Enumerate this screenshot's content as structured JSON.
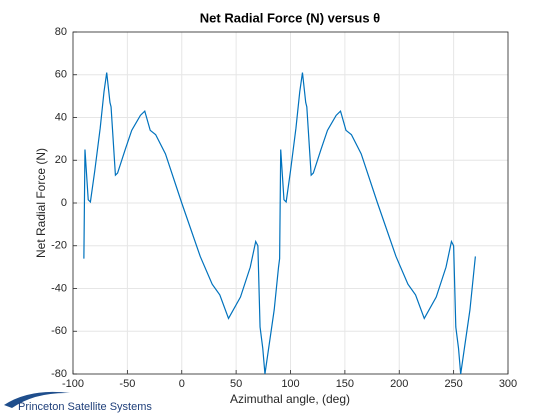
{
  "chart_data": {
    "type": "line",
    "title": "Net Radial Force (N) versus  θ",
    "xlabel": "Azimuthal angle,  (deg)",
    "ylabel": "Net Radial Force (N)",
    "logo": "Princeton Satellite Systems",
    "x": [
      -90,
      -89,
      -86,
      -84,
      -80,
      -75,
      -71.5,
      -69,
      -66,
      -65,
      -61,
      -59,
      -52,
      -46,
      -38,
      -34,
      -29,
      -24,
      -15,
      0,
      17,
      28,
      35,
      43,
      54,
      63,
      68,
      70,
      72,
      74.5,
      76.5,
      85,
      89,
      90,
      91,
      94,
      96,
      100,
      105,
      108.5,
      111,
      114,
      115,
      119,
      121,
      128,
      134,
      142,
      146,
      151,
      156,
      165,
      180,
      197,
      208,
      215,
      223,
      234,
      243,
      248,
      250,
      252,
      254.5,
      256.5,
      265,
      270
    ],
    "series": [
      {
        "name": "Net Radial Force",
        "color": "#0072bd",
        "values": [
          -26,
          25,
          1.5,
          0.5,
          15,
          35,
          52,
          61,
          47,
          45,
          13,
          14,
          25,
          34,
          41,
          43,
          34,
          32,
          23,
          0,
          -25,
          -38,
          -43,
          -54,
          -44,
          -30,
          -18,
          -20,
          -58,
          -68,
          -80,
          -50,
          -30,
          -26,
          25,
          1.5,
          0.5,
          15,
          35,
          52,
          61,
          47,
          45,
          13,
          14,
          25,
          34,
          41,
          43,
          34,
          32,
          23,
          0,
          -25,
          -38,
          -43,
          -54,
          -44,
          -30,
          -18,
          -20,
          -58,
          -68,
          -80,
          -50,
          -25
        ]
      }
    ],
    "xlim": [
      -100,
      300
    ],
    "xticks": [
      -100,
      -50,
      0,
      50,
      100,
      150,
      200,
      250,
      300
    ],
    "ylim": [
      -80,
      80
    ],
    "yticks": [
      -80,
      -60,
      -40,
      -20,
      0,
      20,
      40,
      60,
      80
    ],
    "grid": true
  }
}
